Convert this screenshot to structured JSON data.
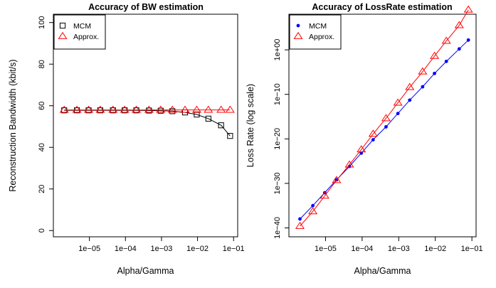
{
  "chart_data": [
    {
      "type": "line",
      "title": "Accuracy of BW estimation",
      "xlabel": "Alpha/Gamma",
      "ylabel": "Reconstruction Bandwidth (kbit/s)",
      "x_scale": "log",
      "xlim": [
        1e-06,
        0.13
      ],
      "ylim": [
        -3,
        104
      ],
      "x_ticks": [
        1e-05,
        0.0001,
        0.001,
        0.01,
        0.1
      ],
      "x_tick_labels": [
        "1e−05",
        "1e−04",
        "1e−03",
        "1e−02",
        "1e−01"
      ],
      "y_ticks": [
        0,
        20,
        40,
        60,
        80,
        100
      ],
      "y_tick_labels": [
        "0",
        "20",
        "40",
        "60",
        "80",
        "100"
      ],
      "legend": "top-left",
      "x": [
        2e-06,
        4.5e-06,
        9.5e-06,
        2e-05,
        4.5e-05,
        9.5e-05,
        0.0002,
        0.00045,
        0.00095,
        0.002,
        0.0045,
        0.0095,
        0.02,
        0.045,
        0.08
      ],
      "series": [
        {
          "name": "MCM",
          "color": "#000000",
          "marker": "square",
          "values": [
            57.8,
            57.8,
            57.8,
            57.8,
            57.8,
            57.8,
            57.8,
            57.7,
            57.6,
            57.4,
            56.8,
            55.8,
            53.8,
            50.6,
            45.5
          ]
        },
        {
          "name": "Approx.",
          "color": "#ff0000",
          "marker": "triangle",
          "values": [
            58.0,
            58.0,
            58.0,
            58.0,
            58.0,
            58.0,
            58.0,
            58.0,
            58.0,
            58.0,
            58.0,
            58.0,
            58.0,
            58.0,
            58.0
          ]
        }
      ]
    },
    {
      "type": "line",
      "title": "Accuracy of LossRate estimation",
      "xlabel": "Alpha/Gamma",
      "ylabel": "Loss Rate (log scale)",
      "x_scale": "log",
      "y_scale": "log",
      "xlim": [
        1e-06,
        0.13
      ],
      "ylim_exp": [
        -42,
        8
      ],
      "x_ticks": [
        1e-05,
        0.0001,
        0.001,
        0.01,
        0.1
      ],
      "x_tick_labels": [
        "1e−05",
        "1e−04",
        "1e−03",
        "1e−02",
        "1e−01"
      ],
      "y_tick_exps": [
        -40,
        -30,
        -20,
        -10,
        0
      ],
      "y_tick_labels": [
        "1e−40",
        "1e−30",
        "1e−20",
        "1e−10",
        "1e+00"
      ],
      "legend": "top-left",
      "x": [
        2e-06,
        4.5e-06,
        9.5e-06,
        2e-05,
        4.5e-05,
        9.5e-05,
        0.0002,
        0.00045,
        0.00095,
        0.002,
        0.0045,
        0.0095,
        0.02,
        0.045,
        0.08
      ],
      "series": [
        {
          "name": "MCM",
          "color": "#0000ff",
          "marker": "dot",
          "values_exp": [
            -38.0,
            -35.0,
            -32.1,
            -29.2,
            -26.2,
            -23.2,
            -20.2,
            -17.3,
            -14.3,
            -11.3,
            -8.3,
            -5.3,
            -2.6,
            0.2,
            2.2
          ]
        },
        {
          "name": "Approx.",
          "color": "#ff0000",
          "marker": "triangle",
          "values_exp": [
            -39.6,
            -36.3,
            -32.8,
            -29.3,
            -25.8,
            -22.4,
            -18.9,
            -15.4,
            -11.9,
            -8.4,
            -4.9,
            -1.4,
            2.0,
            5.5,
            9.0
          ]
        }
      ]
    }
  ]
}
